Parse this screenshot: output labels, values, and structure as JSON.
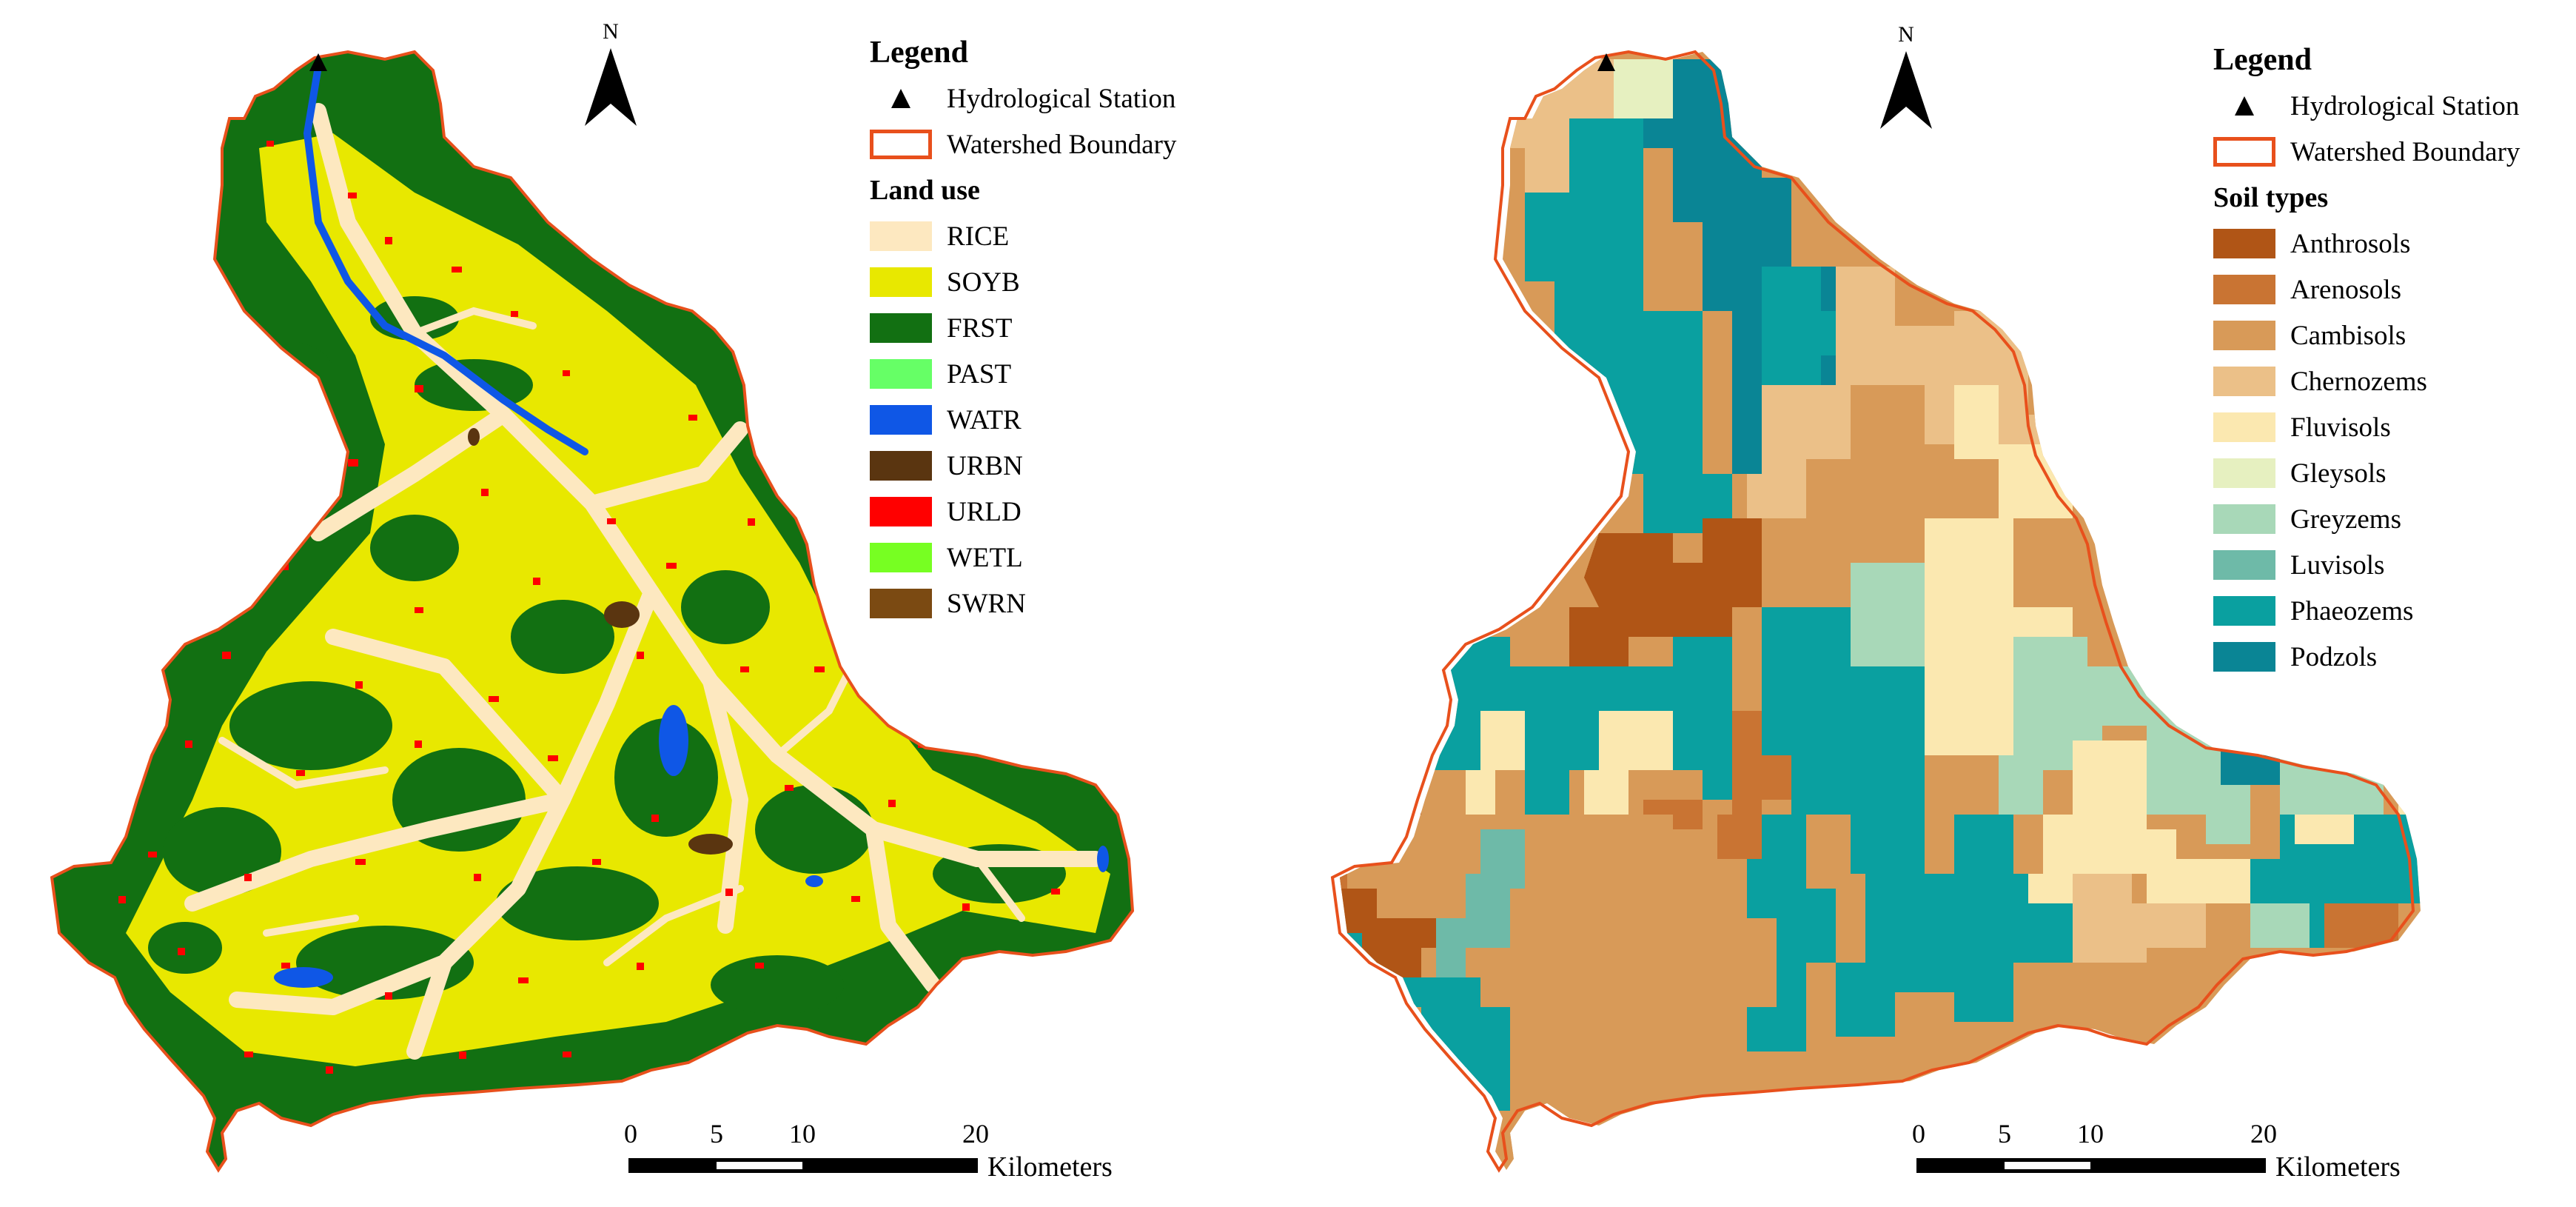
{
  "left_map": {
    "legend_title": "Legend",
    "station_label": "Hydrological Station",
    "boundary_label": "Watershed Boundary",
    "boundary_color": "#e8501c",
    "section_title": "Land use",
    "classes": [
      {
        "code": "RICE",
        "color": "#fde8c0"
      },
      {
        "code": "SOYB",
        "color": "#e8e800"
      },
      {
        "code": "FRST",
        "color": "#127012"
      },
      {
        "code": "PAST",
        "color": "#66ff66"
      },
      {
        "code": "WATR",
        "color": "#0f57e6"
      },
      {
        "code": "URBN",
        "color": "#5a3510"
      },
      {
        "code": "URLD",
        "color": "#ff0000"
      },
      {
        "code": "WETL",
        "color": "#77ff22"
      },
      {
        "code": "SWRN",
        "color": "#7b4a12"
      }
    ],
    "north_label": "N",
    "scale_ticks": [
      "0",
      "5",
      "10",
      "20"
    ],
    "scale_units": "Kilometers"
  },
  "right_map": {
    "legend_title": "Legend",
    "station_label": "Hydrological Station",
    "boundary_label": "Watershed Boundary",
    "boundary_color": "#e8501c",
    "section_title": "Soil types",
    "classes": [
      {
        "code": "Anthrosols",
        "color": "#b05516"
      },
      {
        "code": "Arenosols",
        "color": "#c97433"
      },
      {
        "code": "Cambisols",
        "color": "#d89a58"
      },
      {
        "code": "Chernozems",
        "color": "#ebc088"
      },
      {
        "code": "Fluvisols",
        "color": "#fbe8b0"
      },
      {
        "code": "Gleysols",
        "color": "#e6f0c0"
      },
      {
        "code": "Greyzems",
        "color": "#a8d8b8"
      },
      {
        "code": "Luvisols",
        "color": "#6ebaa8"
      },
      {
        "code": "Phaeozems",
        "color": "#0aa0a0"
      },
      {
        "code": "Podzols",
        "color": "#0a8595"
      }
    ],
    "north_label": "N",
    "scale_ticks": [
      "0",
      "5",
      "10",
      "20"
    ],
    "scale_units": "Kilometers"
  }
}
